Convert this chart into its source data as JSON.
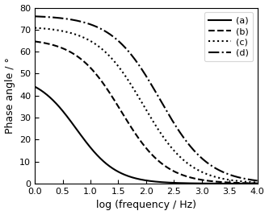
{
  "title": "",
  "xlabel": "log (frequency / Hz)",
  "ylabel": "Phase angle / °",
  "xlim": [
    0,
    4
  ],
  "ylim": [
    0,
    80
  ],
  "xticks": [
    0,
    0.5,
    1.0,
    1.5,
    2.0,
    2.5,
    3.0,
    3.5,
    4.0
  ],
  "yticks": [
    0,
    10,
    20,
    30,
    40,
    50,
    60,
    70,
    80
  ],
  "curves": [
    {
      "label": "(a)",
      "linestyle": "solid",
      "color": "black",
      "A": 49.5,
      "k": 2.8,
      "x0": 0.75
    },
    {
      "label": "(b)",
      "linestyle": "dashed",
      "color": "black",
      "A": 66.0,
      "k": 2.5,
      "x0": 1.55
    },
    {
      "label": "(c)",
      "linestyle": "dotted",
      "color": "black",
      "A": 71.5,
      "k": 2.4,
      "x0": 1.95
    },
    {
      "label": "(d)",
      "linestyle": "dashdot",
      "color": "black",
      "A": 76.5,
      "k": 2.3,
      "x0": 2.25
    }
  ],
  "legend_loc": "upper right",
  "background_color": "#ffffff",
  "linewidth": 1.5
}
